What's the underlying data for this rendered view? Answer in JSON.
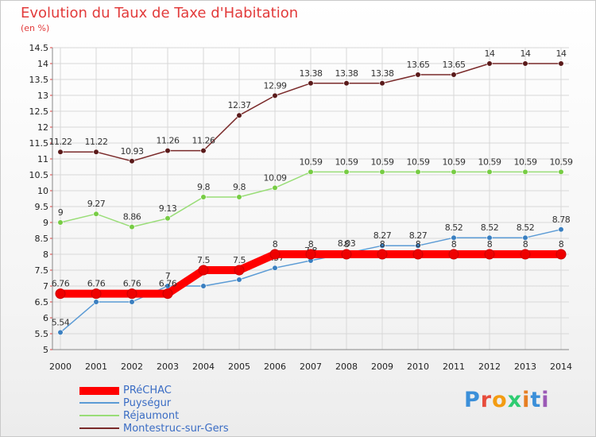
{
  "colors": {
    "title": "#e23b3b",
    "legend_text": "#3a6cc4",
    "axis_text": "#222222",
    "grid": "#d4d4d4",
    "background": "#ffffff"
  },
  "logo": {
    "text": "Proxiti",
    "letters": [
      "P",
      "r",
      "o",
      "x",
      "i",
      "t",
      "i"
    ],
    "colors": [
      "#3b8fd9",
      "#e74c3c",
      "#f39c12",
      "#2ecc71",
      "#e67e22",
      "#3b8fd9",
      "#9b59b6"
    ]
  },
  "chart_data": {
    "type": "line",
    "title": "Evolution du Taux de Taxe d'Habitation",
    "subtitle": "(en %)",
    "xlabel": "",
    "ylabel": "",
    "ylim": [
      5,
      14.5
    ],
    "y_ticks": [
      "5",
      "5.5",
      "6",
      "6.5",
      "7",
      "7.5",
      "8",
      "8.5",
      "9",
      "9.5",
      "10",
      "10.5",
      "11",
      "11.5",
      "12",
      "12.5",
      "13",
      "13.5",
      "14",
      "14.5"
    ],
    "categories": [
      "2000",
      "2001",
      "2002",
      "2003",
      "2004",
      "2005",
      "2006",
      "2007",
      "2008",
      "2009",
      "2010",
      "2011",
      "2012",
      "2013",
      "2014"
    ],
    "grid": true,
    "legend_position": "bottom-left",
    "series": [
      {
        "name": "Montestruc-sur-Gers",
        "color": "#7a2a2a",
        "marker": "#5a1a1a",
        "values": [
          11.22,
          11.22,
          10.93,
          11.26,
          11.26,
          12.37,
          12.99,
          13.38,
          13.38,
          13.38,
          13.65,
          13.65,
          14,
          14,
          14
        ],
        "labels": [
          "11.22",
          "11.22",
          "10.93",
          "11.26",
          "11.26",
          "12.37",
          "12.99",
          "13.38",
          "13.38",
          "13.38",
          "13.65",
          "13.65",
          "14",
          "14",
          "14"
        ]
      },
      {
        "name": "Réjaumont",
        "color": "#99dd77",
        "marker": "#77cc44",
        "values": [
          9,
          9.27,
          8.86,
          9.13,
          9.8,
          9.8,
          10.09,
          10.59,
          10.59,
          10.59,
          10.59,
          10.59,
          10.59,
          10.59,
          10.59
        ],
        "labels": [
          "9",
          "9.27",
          "8.86",
          "9.13",
          "9.8",
          "9.8",
          "10.09",
          "10.59",
          "10.59",
          "10.59",
          "10.59",
          "10.59",
          "10.59",
          "10.59",
          "10.59"
        ]
      },
      {
        "name": "Puységur",
        "color": "#5b9bd5",
        "marker": "#3a7fc0",
        "values": [
          5.54,
          6.5,
          6.5,
          7,
          7,
          7.2,
          7.57,
          7.8,
          8.03,
          8.27,
          8.27,
          8.52,
          8.52,
          8.52,
          8.78
        ],
        "labels": [
          "5.54",
          "",
          "",
          "7",
          "",
          "",
          "7.57",
          "7.8",
          "8.03",
          "8.27",
          "8.27",
          "8.52",
          "8.52",
          "8.52",
          "8.78"
        ]
      },
      {
        "name": "PRéCHAC",
        "color": "#ff0000",
        "marker": "#ee0000",
        "values": [
          6.76,
          6.76,
          6.76,
          6.76,
          7.5,
          7.5,
          8,
          8,
          8,
          8,
          8,
          8,
          8,
          8,
          8
        ],
        "labels": [
          "6.76",
          "6.76",
          "6.76",
          "6.76",
          "7.5",
          "7.5",
          "8",
          "8",
          "8",
          "8",
          "8",
          "8",
          "8",
          "8",
          "8"
        ]
      }
    ],
    "legend": [
      {
        "name": "PRéCHAC",
        "color": "#ff0000"
      },
      {
        "name": "Puységur",
        "color": "#5b9bd5"
      },
      {
        "name": "Réjaumont",
        "color": "#99dd77"
      },
      {
        "name": "Montestruc-sur-Gers",
        "color": "#7a2a2a"
      }
    ]
  }
}
